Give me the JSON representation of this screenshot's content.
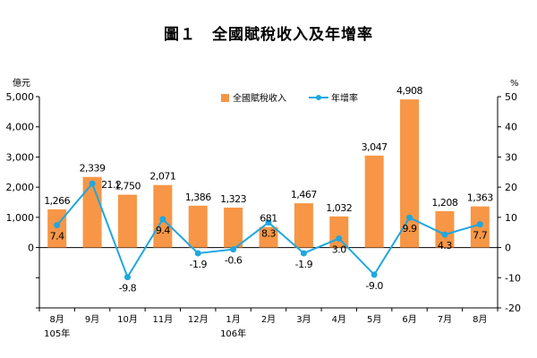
{
  "title": "圖１　全國賦稅收入及年增率",
  "chart_data": {
    "type": "bar",
    "categories": [
      "8月",
      "9月",
      "10月",
      "11月",
      "12月",
      "1月",
      "2月",
      "3月",
      "4月",
      "5月",
      "6月",
      "7月",
      "8月"
    ],
    "year_labels": [
      "105年",
      "",
      "",
      "",
      "",
      "106年",
      "",
      "",
      "",
      "",
      "",
      "",
      ""
    ],
    "series": [
      {
        "name": "全國賦稅收入",
        "type": "bar",
        "axis": "left",
        "color": "#F79646",
        "values": [
          1266,
          2339,
          1750,
          2071,
          1386,
          1323,
          681,
          1467,
          1032,
          3047,
          4908,
          1208,
          1363
        ],
        "labels": [
          "1,266",
          "2,339",
          "1,750",
          "2,071",
          "1,386",
          "1,323",
          "681",
          "1,467",
          "1,032",
          "3,047",
          "4,908",
          "1,208",
          "1,363"
        ]
      },
      {
        "name": "年增率",
        "type": "line",
        "axis": "right",
        "color": "#1FA7E0",
        "values": [
          7.4,
          21.2,
          -9.8,
          9.4,
          -1.9,
          -0.6,
          8.3,
          -1.9,
          3.0,
          -9.0,
          9.9,
          4.3,
          7.7
        ],
        "labels": [
          "7.4",
          "21.2",
          "-9.8",
          "9.4",
          "-1.9",
          "-0.6",
          "8.3",
          "-1.9",
          "3.0",
          "-9.0",
          "9.9",
          "4.3",
          "7.7"
        ]
      }
    ],
    "left_axis": {
      "unit": "億元",
      "ylim": [
        -2000,
        5000
      ],
      "ticks": [
        0,
        1000,
        2000,
        3000,
        4000,
        5000
      ],
      "tick_labels": [
        "0",
        "1,000",
        "2,000",
        "3,000",
        "4,000",
        "5,000"
      ]
    },
    "right_axis": {
      "unit": "%",
      "ylim": [
        -20,
        50
      ],
      "ticks": [
        -20,
        -10,
        0,
        10,
        20,
        30,
        40,
        50
      ],
      "tick_labels": [
        "-20",
        "-10",
        "0",
        "10",
        "20",
        "30",
        "40",
        "50"
      ]
    },
    "legend": {
      "placement": "top-center",
      "items": [
        "全國賦稅收入",
        "年增率"
      ]
    },
    "grid": false
  }
}
